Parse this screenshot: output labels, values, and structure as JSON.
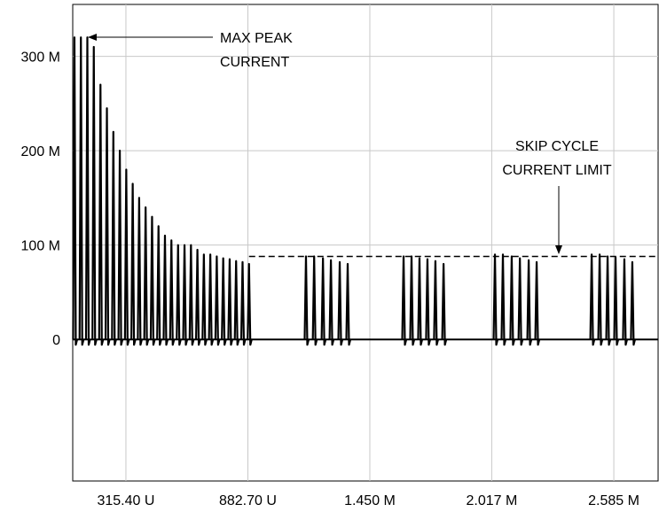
{
  "chart_data": {
    "type": "pulse",
    "color": "#000000",
    "grid": true,
    "xlim": [
      6.8e-05,
      0.002791
    ],
    "xticks": [
      {
        "value": 0.0003154,
        "label": "315.40 U"
      },
      {
        "value": 0.0008827,
        "label": "882.70 U"
      },
      {
        "value": 0.00145,
        "label": "1.450 M"
      },
      {
        "value": 0.002017,
        "label": "2.017 M"
      },
      {
        "value": 0.002585,
        "label": "2.585 M"
      }
    ],
    "ylim": [
      -0.15,
      0.355
    ],
    "yticks": [
      {
        "value": 0,
        "label": "0"
      },
      {
        "value": 0.1,
        "label": "100 M"
      },
      {
        "value": 0.2,
        "label": "200 M"
      },
      {
        "value": 0.3,
        "label": "300 M"
      }
    ],
    "x": [
      7.6e-05,
      0.000106,
      0.000136,
      0.000166,
      0.000197,
      0.000227,
      0.000257,
      0.000287,
      0.000317,
      0.000347,
      0.000377,
      0.000407,
      0.000437,
      0.000467,
      0.000497,
      0.000527,
      0.000558,
      0.000588,
      0.000618,
      0.000648,
      0.000678,
      0.000708,
      0.000738,
      0.000768,
      0.000798,
      0.000828,
      0.000858,
      0.000888,
      0.001153,
      0.001191,
      0.001232,
      0.001269,
      0.00131,
      0.001347,
      0.001607,
      0.001644,
      0.001681,
      0.001718,
      0.001755,
      0.001793,
      0.002032,
      0.002069,
      0.00211,
      0.002148,
      0.002189,
      0.002226,
      0.002482,
      0.002519,
      0.002556,
      0.002593,
      0.002634,
      0.002671
    ],
    "values": [
      0.32,
      0.32,
      0.32,
      0.31,
      0.27,
      0.245,
      0.22,
      0.2,
      0.18,
      0.165,
      0.15,
      0.14,
      0.13,
      0.12,
      0.11,
      0.105,
      0.1,
      0.1,
      0.1,
      0.095,
      0.09,
      0.09,
      0.088,
      0.086,
      0.085,
      0.083,
      0.082,
      0.08,
      0.088,
      0.088,
      0.086,
      0.084,
      0.082,
      0.08,
      0.088,
      0.088,
      0.086,
      0.085,
      0.083,
      0.08,
      0.09,
      0.09,
      0.088,
      0.086,
      0.084,
      0.082,
      0.09,
      0.09,
      0.088,
      0.087,
      0.085,
      0.082
    ],
    "limit": 0.088,
    "annotations": [
      {
        "text": "MAX PEAK",
        "text2": "CURRENT"
      },
      {
        "text": "SKIP CYCLE",
        "text2": "CURRENT LIMIT"
      }
    ]
  }
}
